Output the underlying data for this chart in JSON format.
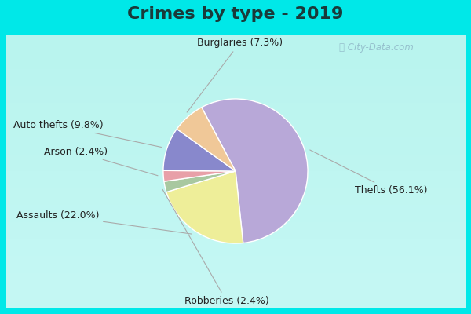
{
  "title": "Crimes by type - 2019",
  "slices": [
    {
      "label": "Thefts",
      "pct": 56.1,
      "color": "#b8a8d8"
    },
    {
      "label": "Assaults",
      "pct": 22.0,
      "color": "#eeee99"
    },
    {
      "label": "Robberies",
      "pct": 2.4,
      "color": "#a8c8a0"
    },
    {
      "label": "Arson",
      "pct": 2.4,
      "color": "#e8a0a8"
    },
    {
      "label": "Auto thefts",
      "pct": 9.8,
      "color": "#8888cc"
    },
    {
      "label": "Burglaries",
      "pct": 7.3,
      "color": "#f0c898"
    }
  ],
  "bg_outer": "#00e8e8",
  "bg_inner_top": "#d8f0e8",
  "bg_inner_bot": "#f0f8f0",
  "title_fontsize": 16,
  "label_fontsize": 9,
  "watermark": "ⓘ City-Data.com",
  "startangle": 118
}
